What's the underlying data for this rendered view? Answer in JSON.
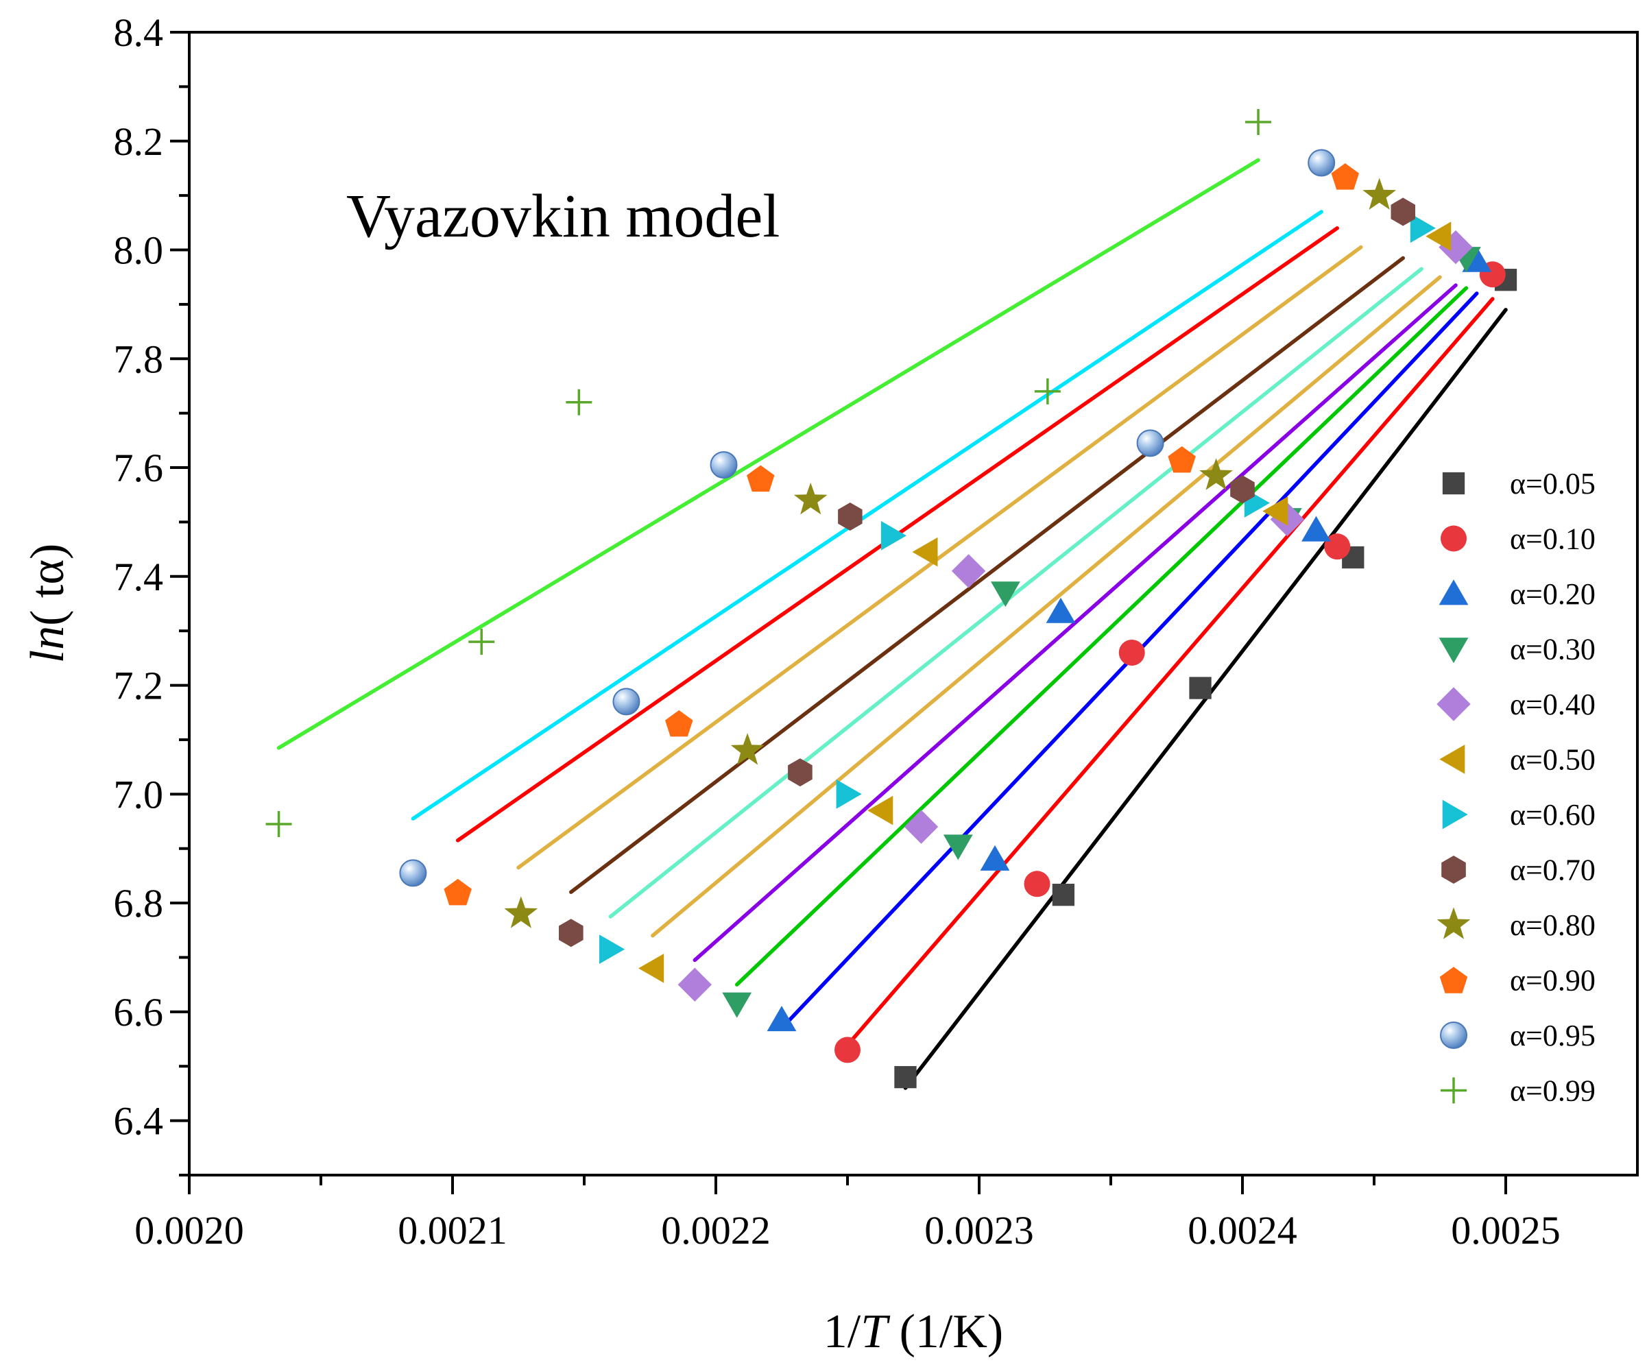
{
  "chart_data": {
    "type": "scatter",
    "title": "",
    "annotation": "Vyazovkin model",
    "xlabel": {
      "prefix": "1/",
      "italic": "T",
      "suffix": " (1/K)"
    },
    "ylabel": {
      "italic": "ln",
      "suffix": "(  tα)"
    },
    "xlim": [
      0.002,
      0.00255
    ],
    "ylim": [
      6.3,
      8.4
    ],
    "xticks": [
      "0.0020",
      "0.0021",
      "0.0022",
      "0.0023",
      "0.0024",
      "0.0025"
    ],
    "yticks": [
      "6.4",
      "6.6",
      "6.8",
      "7.0",
      "7.2",
      "7.4",
      "7.6",
      "7.8",
      "8.0",
      "8.2",
      "8.4"
    ],
    "legend_position": "right",
    "series": [
      {
        "name": "α=0.05",
        "marker": "square",
        "color": "#444444",
        "line_color": "#000000",
        "x": [
          0.002272,
          0.002332,
          0.002384,
          0.002442,
          0.0025
        ],
        "y": [
          6.48,
          6.815,
          7.195,
          7.435,
          7.945
        ],
        "fit": [
          [
            0.002272,
            6.46
          ],
          [
            0.0025,
            7.89
          ]
        ]
      },
      {
        "name": "α=0.10",
        "marker": "circle",
        "color": "#e8383d",
        "line_color": "#ff0000",
        "x": [
          0.00225,
          0.002322,
          0.002358,
          0.002436,
          0.002495
        ],
        "y": [
          6.53,
          6.835,
          7.26,
          7.455,
          7.955
        ],
        "fit": [
          [
            0.002252,
            6.55
          ],
          [
            0.002495,
            7.91
          ]
        ]
      },
      {
        "name": "α=0.20",
        "marker": "triangle-up",
        "color": "#1f6fd6",
        "line_color": "#0000ff",
        "x": [
          0.002225,
          0.002306,
          0.002331,
          0.002428,
          0.002489
        ],
        "y": [
          6.585,
          6.88,
          7.335,
          7.485,
          7.98
        ],
        "fit": [
          [
            0.002227,
            6.58
          ],
          [
            0.002489,
            7.92
          ]
        ]
      },
      {
        "name": "α=0.30",
        "marker": "triangle-down",
        "color": "#2e9e64",
        "line_color": "#00c800",
        "x": [
          0.002208,
          0.002292,
          0.00231,
          0.002417,
          0.002485
        ],
        "y": [
          6.615,
          6.905,
          7.37,
          7.505,
          7.985
        ],
        "fit": [
          [
            0.002208,
            6.65
          ],
          [
            0.002485,
            7.93
          ]
        ]
      },
      {
        "name": "α=0.40",
        "marker": "diamond",
        "color": "#b07fdc",
        "line_color": "#8a00e6",
        "x": [
          0.002192,
          0.002278,
          0.002296,
          0.002417,
          0.002481
        ],
        "y": [
          6.65,
          6.94,
          7.41,
          7.505,
          8.005
        ],
        "fit": [
          [
            0.002192,
            6.695
          ],
          [
            0.002481,
            7.935
          ]
        ]
      },
      {
        "name": "α=0.50",
        "marker": "triangle-left",
        "color": "#c99a08",
        "line_color": "#e0b040",
        "x": [
          0.002176,
          0.002263,
          0.00228,
          0.002413,
          0.002475
        ],
        "y": [
          6.68,
          6.97,
          7.445,
          7.52,
          8.025
        ],
        "fit": [
          [
            0.002176,
            6.74
          ],
          [
            0.002475,
            7.95
          ]
        ]
      },
      {
        "name": "α=0.60",
        "marker": "triangle-right",
        "color": "#17c2d6",
        "line_color": "#66f0c8",
        "x": [
          0.00216,
          0.00225,
          0.002267,
          0.002405,
          0.002468
        ],
        "y": [
          6.715,
          7.0,
          7.475,
          7.535,
          8.04
        ],
        "fit": [
          [
            0.00216,
            6.775
          ],
          [
            0.002468,
            7.965
          ]
        ]
      },
      {
        "name": "α=0.70",
        "marker": "hexagon",
        "color": "#7a4a45",
        "line_color": "#6b3010",
        "x": [
          0.002145,
          0.002232,
          0.002251,
          0.0024,
          0.002461
        ],
        "y": [
          6.745,
          7.04,
          7.51,
          7.56,
          8.07
        ],
        "fit": [
          [
            0.002145,
            6.82
          ],
          [
            0.002461,
            7.985
          ]
        ]
      },
      {
        "name": "α=0.80",
        "marker": "star",
        "color": "#8c8a14",
        "line_color": "#e0b040",
        "x": [
          0.002126,
          0.002212,
          0.002236,
          0.00239,
          0.002452
        ],
        "y": [
          6.78,
          7.08,
          7.54,
          7.585,
          8.1
        ],
        "fit": [
          [
            0.002125,
            6.865
          ],
          [
            0.002445,
            8.005
          ]
        ]
      },
      {
        "name": "α=0.90",
        "marker": "pentagon",
        "color": "#ff6a10",
        "line_color": "#ff0000",
        "x": [
          0.002102,
          0.002186,
          0.002217,
          0.002377,
          0.002439
        ],
        "y": [
          6.82,
          7.13,
          7.58,
          7.615,
          8.135
        ],
        "fit": [
          [
            0.002102,
            6.915
          ],
          [
            0.002436,
            8.04
          ]
        ]
      },
      {
        "name": "α=0.95",
        "marker": "sphere",
        "color": "#5b8ed0",
        "line_color": "#00e5ff",
        "x": [
          0.002085,
          0.002166,
          0.002203,
          0.002365,
          0.00243
        ],
        "y": [
          6.855,
          7.17,
          7.605,
          7.645,
          8.16
        ],
        "fit": [
          [
            0.002085,
            6.955
          ],
          [
            0.00243,
            8.07
          ]
        ]
      },
      {
        "name": "α=0.99",
        "marker": "plus",
        "color": "#5aa82a",
        "line_color": "#44ee33",
        "x": [
          0.002034,
          0.002111,
          0.002148,
          0.002326,
          0.002406
        ],
        "y": [
          6.945,
          7.28,
          7.72,
          7.74,
          8.235
        ],
        "fit": [
          [
            0.002034,
            7.085
          ],
          [
            0.002406,
            8.165
          ]
        ]
      }
    ]
  }
}
